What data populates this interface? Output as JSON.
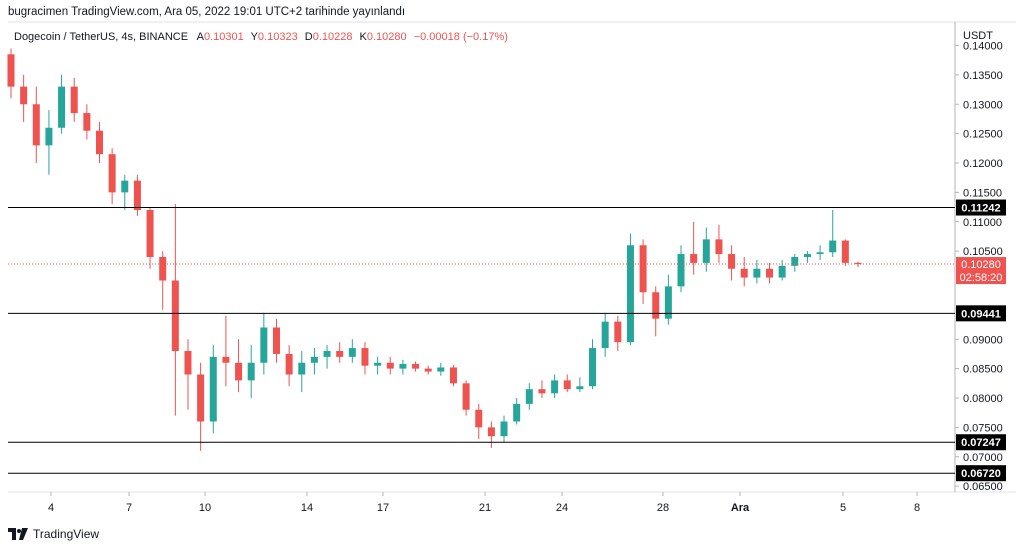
{
  "header": {
    "publish_text": "bugracimen TradingView.com, Ara 05, 2022 19:01 UTC+2 tarihinde yayınlandı"
  },
  "symbol": {
    "title": "Dogecoin / TetherUS, 4s, BINANCE",
    "open_label": "A",
    "open_value": "0.10301",
    "high_label": "Y",
    "high_value": "0.10323",
    "low_label": "D",
    "low_value": "0.10228",
    "close_label": "K",
    "close_value": "0.10280",
    "change_text": "−0.00018 (−0.17%)"
  },
  "axis": {
    "currency": "USDT"
  },
  "footer": {
    "brand": "TradingView"
  },
  "colors": {
    "up": "#26a69a",
    "down": "#ef5350",
    "level": "#000000",
    "current": "#ef5350"
  },
  "chart_data": {
    "type": "candlestick",
    "ylim": [
      0.064,
      0.144
    ],
    "y_ticks": [
      "0.14000",
      "0.13500",
      "0.13000",
      "0.12500",
      "0.12000",
      "0.11500",
      "0.11000",
      "0.10500",
      "0.09000",
      "0.08500",
      "0.08000",
      "0.07500",
      "0.07000",
      "0.06500"
    ],
    "x_ticks": [
      "4",
      "7",
      "10",
      "14",
      "17",
      "21",
      "24",
      "28",
      "Ara",
      "5",
      "8"
    ],
    "x_ticks_bold": [
      "Ara"
    ],
    "horizontal_levels": [
      "0.11242",
      "0.09441",
      "0.07247",
      "0.06720"
    ],
    "current_price": {
      "value": "0.10280",
      "countdown": "02:58:20"
    },
    "series": [
      {
        "x": "3",
        "o": 0.1385,
        "h": 0.1395,
        "l": 0.131,
        "c": 0.133
      },
      {
        "x": "3",
        "o": 0.133,
        "h": 0.135,
        "l": 0.127,
        "c": 0.13
      },
      {
        "x": "4",
        "o": 0.13,
        "h": 0.133,
        "l": 0.12,
        "c": 0.123
      },
      {
        "x": "4",
        "o": 0.123,
        "h": 0.129,
        "l": 0.118,
        "c": 0.126
      },
      {
        "x": "5",
        "o": 0.126,
        "h": 0.135,
        "l": 0.125,
        "c": 0.133
      },
      {
        "x": "5",
        "o": 0.133,
        "h": 0.1345,
        "l": 0.127,
        "c": 0.1285
      },
      {
        "x": "6",
        "o": 0.1285,
        "h": 0.13,
        "l": 0.124,
        "c": 0.1255
      },
      {
        "x": "6",
        "o": 0.1255,
        "h": 0.127,
        "l": 0.12,
        "c": 0.1215
      },
      {
        "x": "7",
        "o": 0.1215,
        "h": 0.1225,
        "l": 0.113,
        "c": 0.115
      },
      {
        "x": "7",
        "o": 0.115,
        "h": 0.118,
        "l": 0.112,
        "c": 0.117
      },
      {
        "x": "8",
        "o": 0.117,
        "h": 0.118,
        "l": 0.111,
        "c": 0.112
      },
      {
        "x": "8",
        "o": 0.112,
        "h": 0.1125,
        "l": 0.102,
        "c": 0.104
      },
      {
        "x": "8",
        "o": 0.104,
        "h": 0.105,
        "l": 0.095,
        "c": 0.1
      },
      {
        "x": "9",
        "o": 0.1,
        "h": 0.113,
        "l": 0.077,
        "c": 0.088
      },
      {
        "x": "9",
        "o": 0.088,
        "h": 0.09,
        "l": 0.078,
        "c": 0.084
      },
      {
        "x": "10",
        "o": 0.084,
        "h": 0.086,
        "l": 0.071,
        "c": 0.076
      },
      {
        "x": "10",
        "o": 0.076,
        "h": 0.089,
        "l": 0.074,
        "c": 0.087
      },
      {
        "x": "11",
        "o": 0.087,
        "h": 0.094,
        "l": 0.082,
        "c": 0.086
      },
      {
        "x": "11",
        "o": 0.086,
        "h": 0.09,
        "l": 0.081,
        "c": 0.083
      },
      {
        "x": "12",
        "o": 0.083,
        "h": 0.089,
        "l": 0.08,
        "c": 0.086
      },
      {
        "x": "12",
        "o": 0.086,
        "h": 0.0945,
        "l": 0.084,
        "c": 0.092
      },
      {
        "x": "13",
        "o": 0.092,
        "h": 0.0935,
        "l": 0.086,
        "c": 0.0875
      },
      {
        "x": "13",
        "o": 0.0875,
        "h": 0.089,
        "l": 0.082,
        "c": 0.084
      },
      {
        "x": "14",
        "o": 0.084,
        "h": 0.088,
        "l": 0.081,
        "c": 0.086
      },
      {
        "x": "14",
        "o": 0.086,
        "h": 0.0885,
        "l": 0.084,
        "c": 0.087
      },
      {
        "x": "15",
        "o": 0.087,
        "h": 0.089,
        "l": 0.085,
        "c": 0.088
      },
      {
        "x": "15",
        "o": 0.088,
        "h": 0.0895,
        "l": 0.086,
        "c": 0.087
      },
      {
        "x": "16",
        "o": 0.087,
        "h": 0.09,
        "l": 0.086,
        "c": 0.0885
      },
      {
        "x": "16",
        "o": 0.0885,
        "h": 0.0895,
        "l": 0.084,
        "c": 0.0855
      },
      {
        "x": "17",
        "o": 0.0855,
        "h": 0.087,
        "l": 0.084,
        "c": 0.086
      },
      {
        "x": "17",
        "o": 0.086,
        "h": 0.087,
        "l": 0.084,
        "c": 0.085
      },
      {
        "x": "18",
        "o": 0.085,
        "h": 0.0865,
        "l": 0.084,
        "c": 0.0858
      },
      {
        "x": "18",
        "o": 0.0858,
        "h": 0.0862,
        "l": 0.0845,
        "c": 0.085
      },
      {
        "x": "19",
        "o": 0.085,
        "h": 0.0855,
        "l": 0.084,
        "c": 0.0845
      },
      {
        "x": "19",
        "o": 0.0845,
        "h": 0.086,
        "l": 0.0838,
        "c": 0.0852
      },
      {
        "x": "20",
        "o": 0.0852,
        "h": 0.0856,
        "l": 0.082,
        "c": 0.0825
      },
      {
        "x": "20",
        "o": 0.0825,
        "h": 0.083,
        "l": 0.077,
        "c": 0.078
      },
      {
        "x": "21",
        "o": 0.078,
        "h": 0.079,
        "l": 0.073,
        "c": 0.075
      },
      {
        "x": "21",
        "o": 0.075,
        "h": 0.076,
        "l": 0.0715,
        "c": 0.0735
      },
      {
        "x": "22",
        "o": 0.0735,
        "h": 0.077,
        "l": 0.0725,
        "c": 0.076
      },
      {
        "x": "22",
        "o": 0.076,
        "h": 0.08,
        "l": 0.0755,
        "c": 0.079
      },
      {
        "x": "23",
        "o": 0.079,
        "h": 0.0825,
        "l": 0.078,
        "c": 0.0815
      },
      {
        "x": "23",
        "o": 0.0815,
        "h": 0.083,
        "l": 0.08,
        "c": 0.0808
      },
      {
        "x": "24",
        "o": 0.0808,
        "h": 0.084,
        "l": 0.08,
        "c": 0.083
      },
      {
        "x": "24",
        "o": 0.083,
        "h": 0.084,
        "l": 0.081,
        "c": 0.0815
      },
      {
        "x": "25",
        "o": 0.0815,
        "h": 0.0835,
        "l": 0.081,
        "c": 0.082
      },
      {
        "x": "25",
        "o": 0.082,
        "h": 0.09,
        "l": 0.0815,
        "c": 0.0885
      },
      {
        "x": "26",
        "o": 0.0885,
        "h": 0.0945,
        "l": 0.087,
        "c": 0.093
      },
      {
        "x": "26",
        "o": 0.093,
        "h": 0.094,
        "l": 0.088,
        "c": 0.0895
      },
      {
        "x": "27",
        "o": 0.0895,
        "h": 0.108,
        "l": 0.089,
        "c": 0.106
      },
      {
        "x": "27",
        "o": 0.106,
        "h": 0.107,
        "l": 0.096,
        "c": 0.098
      },
      {
        "x": "28",
        "o": 0.098,
        "h": 0.099,
        "l": 0.0905,
        "c": 0.0935
      },
      {
        "x": "28",
        "o": 0.0935,
        "h": 0.101,
        "l": 0.0925,
        "c": 0.099
      },
      {
        "x": "29",
        "o": 0.099,
        "h": 0.106,
        "l": 0.098,
        "c": 0.1045
      },
      {
        "x": "29",
        "o": 0.1045,
        "h": 0.11,
        "l": 0.101,
        "c": 0.103
      },
      {
        "x": "30",
        "o": 0.103,
        "h": 0.109,
        "l": 0.1015,
        "c": 0.107
      },
      {
        "x": "30",
        "o": 0.107,
        "h": 0.1095,
        "l": 0.103,
        "c": 0.1045
      },
      {
        "x": "Ara",
        "o": 0.1045,
        "h": 0.106,
        "l": 0.1,
        "c": 0.102
      },
      {
        "x": "Ara",
        "o": 0.102,
        "h": 0.104,
        "l": 0.099,
        "c": 0.1005
      },
      {
        "x": "2",
        "o": 0.1005,
        "h": 0.1035,
        "l": 0.0995,
        "c": 0.102
      },
      {
        "x": "2",
        "o": 0.102,
        "h": 0.103,
        "l": 0.0995,
        "c": 0.1005
      },
      {
        "x": "3",
        "o": 0.1005,
        "h": 0.1035,
        "l": 0.1,
        "c": 0.1025
      },
      {
        "x": "3",
        "o": 0.1025,
        "h": 0.1045,
        "l": 0.1015,
        "c": 0.104
      },
      {
        "x": "4",
        "o": 0.104,
        "h": 0.105,
        "l": 0.103,
        "c": 0.1045
      },
      {
        "x": "4",
        "o": 0.1045,
        "h": 0.106,
        "l": 0.1035,
        "c": 0.1048
      },
      {
        "x": "5",
        "o": 0.1048,
        "h": 0.112,
        "l": 0.104,
        "c": 0.1068
      },
      {
        "x": "5",
        "o": 0.1068,
        "h": 0.107,
        "l": 0.1025,
        "c": 0.103
      },
      {
        "x": "5",
        "o": 0.10301,
        "h": 0.10323,
        "l": 0.10228,
        "c": 0.1028
      }
    ]
  }
}
